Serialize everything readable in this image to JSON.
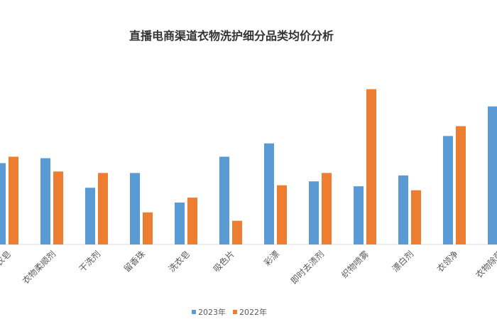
{
  "chart_data": {
    "type": "bar",
    "title": "直播电商渠道衣物洗护细分品类均价分析",
    "categories": [
      "衣皂",
      "衣物柔顺剂",
      "干洗剂",
      "留香珠",
      "洗衣皂",
      "吸色片",
      "彩漂",
      "即时去渍剂",
      "织物喷雾",
      "漂白剂",
      "衣领净",
      "衣物除菌"
    ],
    "series": [
      {
        "name": "2023年",
        "color": "#5B9BD5",
        "values": [
          16.5,
          17.5,
          11.5,
          14.5,
          8.5,
          17.8,
          20.5,
          12.8,
          11.8,
          14.0,
          22.0,
          28.0
        ]
      },
      {
        "name": "2022年",
        "color": "#ED7D31",
        "values": [
          17.8,
          14.8,
          14.5,
          6.5,
          9.5,
          4.8,
          12.0,
          14.5,
          31.5,
          11.0,
          24.0,
          null
        ]
      }
    ],
    "ylim": [
      0,
      32
    ],
    "grid": false,
    "legend": "bottom-center"
  }
}
